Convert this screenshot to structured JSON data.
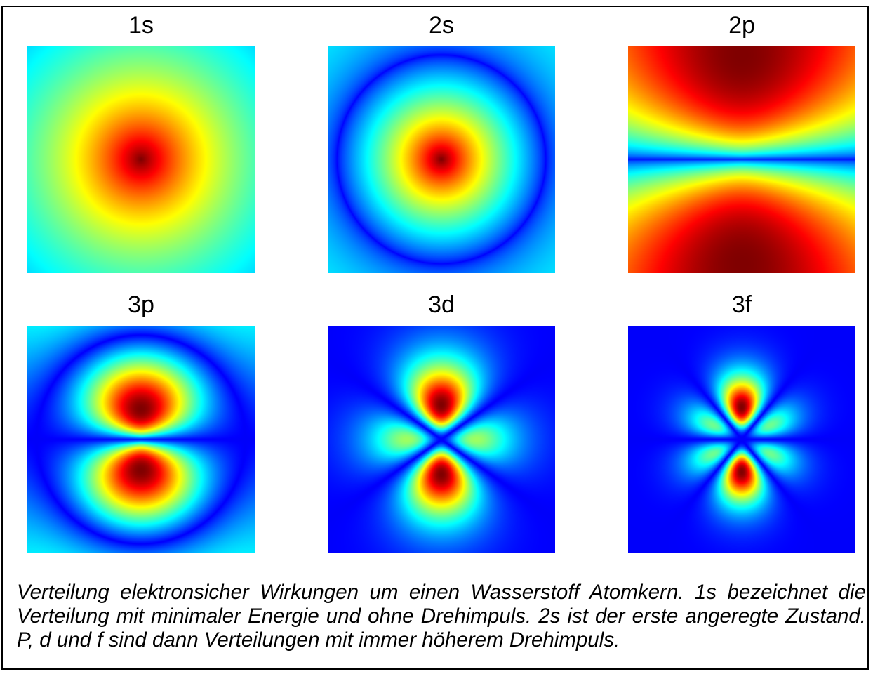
{
  "orbitals": [
    {
      "label": "1s",
      "n": 1,
      "l": 0
    },
    {
      "label": "2s",
      "n": 2,
      "l": 0
    },
    {
      "label": "2p",
      "n": 2,
      "l": 1
    },
    {
      "label": "3p",
      "n": 3,
      "l": 1
    },
    {
      "label": "3d",
      "n": 3,
      "l": 2
    },
    {
      "label": "3f",
      "n": 3,
      "l": 3
    }
  ],
  "caption": "Verteilung elektronsicher Wirkungen um einen Wasserstoff Atomkern. 1s bezeichnet die Verteilung mit minimaler Energie und ohne Drehimpuls. 2s ist der erste angeregte Zustand. P, d und f sind dann Verteilungen mit immer höherem Drehimpuls.",
  "colors": {
    "background": "#10109a",
    "colormap": "jet",
    "frame": "#000000"
  }
}
